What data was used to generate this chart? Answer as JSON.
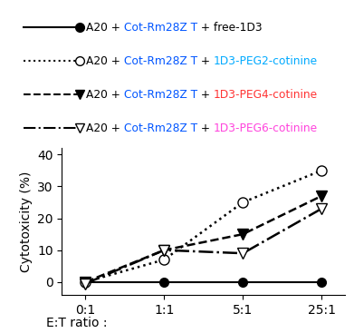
{
  "x_positions": [
    0,
    1,
    2,
    3
  ],
  "x_labels": [
    "0:1",
    "1:1",
    "5:1",
    "25:1"
  ],
  "series": [
    {
      "name": "free-1D3",
      "y": [
        0,
        0,
        0,
        0
      ],
      "linestyle": "-",
      "marker": "o",
      "markerfacecolor": "black",
      "markeredgecolor": "black",
      "linecolor": "black",
      "markersize": 7,
      "linewidth": 1.5
    },
    {
      "name": "PEG2",
      "y": [
        0,
        7,
        25,
        35
      ],
      "linestyle": ":",
      "marker": "o",
      "markerfacecolor": "white",
      "markeredgecolor": "black",
      "linecolor": "black",
      "markersize": 8,
      "linewidth": 1.8
    },
    {
      "name": "PEG4",
      "y": [
        0,
        10,
        15,
        27
      ],
      "linestyle": "--",
      "marker": "v",
      "markerfacecolor": "black",
      "markeredgecolor": "black",
      "linecolor": "black",
      "markersize": 9,
      "linewidth": 1.8
    },
    {
      "name": "PEG6",
      "y": [
        -0.5,
        10,
        9,
        23
      ],
      "linestyle": "-.",
      "marker": "v",
      "markerfacecolor": "white",
      "markeredgecolor": "black",
      "linecolor": "black",
      "markersize": 9,
      "linewidth": 1.8
    }
  ],
  "ylabel": "Cytotoxicity (%)",
  "xlabel": "E:T ratio :",
  "ylim": [
    -4,
    42
  ],
  "yticks": [
    0,
    10,
    20,
    30,
    40
  ],
  "peg2_color": "#00AAFF",
  "peg4_color": "#FF3333",
  "peg6_color": "#FF44DD",
  "blue_color": "#0055FF",
  "background_color": "#ffffff"
}
